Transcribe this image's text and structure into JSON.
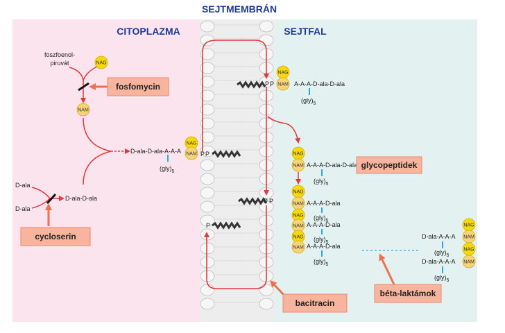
{
  "title": "SEJTMEMBRÁN",
  "regions": {
    "cytoplasm": "CITOPLAZMA",
    "cell_wall": "SEJTFAL"
  },
  "substrates": {
    "pep": [
      "foszfoenol-",
      "piruvát"
    ],
    "dala": "D-ala",
    "dala_dala": "D-ala-D-ala"
  },
  "sugars": {
    "nag": "NAG",
    "nam": "NAM"
  },
  "phosphate": "P",
  "chains": {
    "precursor": "D-ala-D-ala-A-A-A",
    "wall_top": "A-A-A-D-ala-D-ala",
    "stack_first": "A-A-A-D-ala-D-ala",
    "stack_short": "A-A-A-D-ala",
    "crosslink": "D-ala-A-A-A"
  },
  "gly": "(gly)",
  "gly_sub": "5",
  "drugs": {
    "fosfomycin": "fosfomycin",
    "cycloserin": "cycloserin",
    "bacitracin": "bacitracin",
    "beta": "béta-laktámok"
  },
  "product": "glycopeptidek",
  "colors": {
    "cytoplasm": "#fbe4ee",
    "wall": "#e3f2f0",
    "membrane": "#e7e7e7",
    "arrow": "#e5383b",
    "drug_box": "#f8b49c",
    "sugar": "#f7d34a",
    "title": "#1f3a93",
    "link": "#27a9e1"
  }
}
